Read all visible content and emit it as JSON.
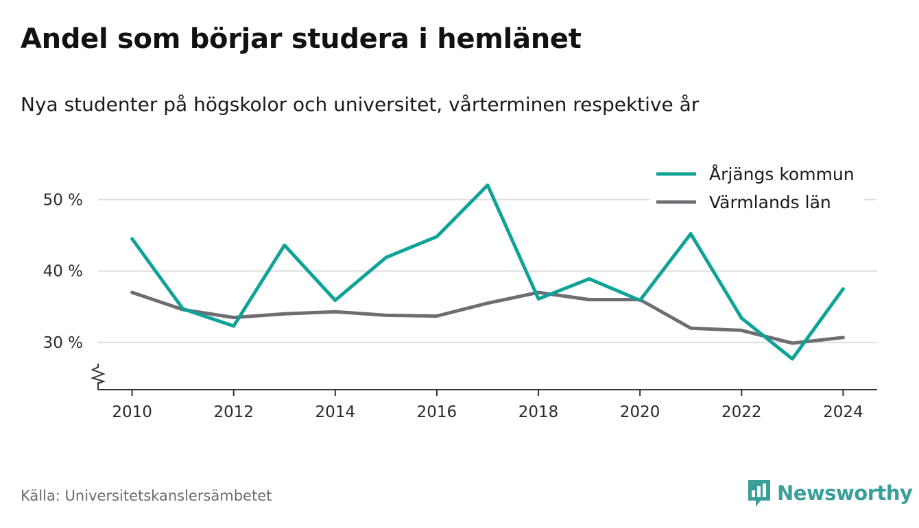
{
  "title": "Andel som börjar studera i hemlänet",
  "subtitle": "Nya studenter på högskolor och universitet, vårterminen respektive år",
  "source": "Källa: Universitetskanslersämbetet",
  "brand": {
    "name": "Newsworthy",
    "icon": "newsworthy-logo-icon"
  },
  "colors": {
    "series1": "#0fa398",
    "series2": "#6e6d74",
    "grid": "#dedede",
    "axis": "#333333",
    "brand": "#3a9e9a"
  },
  "chart_data": {
    "type": "line",
    "x": [
      2010,
      2011,
      2012,
      2013,
      2014,
      2015,
      2016,
      2017,
      2018,
      2019,
      2020,
      2021,
      2022,
      2023,
      2024
    ],
    "series": [
      {
        "name": "Årjängs kommun",
        "color": "#0fa398",
        "values": [
          44.5,
          34.7,
          32.3,
          43.6,
          35.9,
          41.9,
          44.8,
          52.0,
          36.1,
          38.9,
          35.9,
          45.2,
          33.4,
          27.7,
          37.5
        ]
      },
      {
        "name": "Värmlands län",
        "color": "#6e6d74",
        "values": [
          37.0,
          34.6,
          33.5,
          34.0,
          34.3,
          33.8,
          33.7,
          35.5,
          37.0,
          36.0,
          36.0,
          32.0,
          31.7,
          29.9,
          30.7
        ]
      }
    ],
    "xticks": [
      "2010",
      "2012",
      "2014",
      "2016",
      "2018",
      "2020",
      "2022",
      "2024"
    ],
    "yticks": [
      "30 %",
      "40 %",
      "50 %"
    ],
    "ytick_values": [
      30,
      40,
      50
    ],
    "ylim": [
      23.4,
      53
    ],
    "xlim": [
      2009.33,
      2024.67
    ],
    "y_axis_break": true,
    "grid": true,
    "legend_position": "top-right"
  }
}
